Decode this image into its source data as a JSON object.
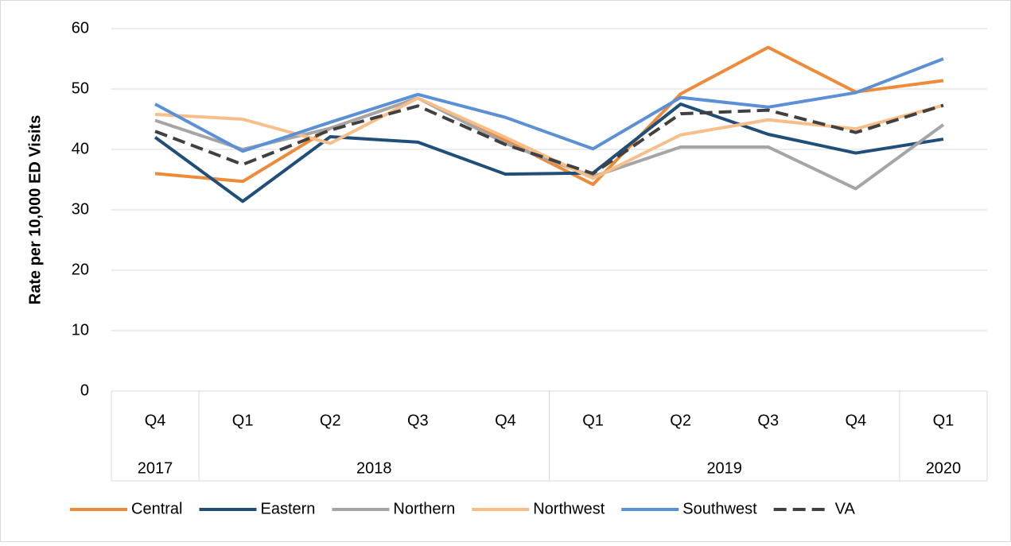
{
  "chart_data": {
    "type": "line",
    "y_label": "Rate per 10,000 ED Visits",
    "categories": [
      "Q4",
      "Q1",
      "Q2",
      "Q3",
      "Q4",
      "Q1",
      "Q2",
      "Q3",
      "Q4",
      "Q1"
    ],
    "years": [
      "2017",
      "2018",
      "2018",
      "2018",
      "2018",
      "2019",
      "2019",
      "2019",
      "2019",
      "2020"
    ],
    "ylim": [
      0,
      60
    ],
    "yticks": [
      0,
      10,
      20,
      30,
      40,
      50,
      60
    ],
    "grid": true,
    "legend": "bottom",
    "series": [
      {
        "name": "Central",
        "color": "#ed8b3a",
        "values": [
          36,
          34.7,
          43.5,
          48.5,
          41.5,
          34.2,
          49.2,
          56.9,
          49.5,
          51.4
        ]
      },
      {
        "name": "Eastern",
        "color": "#1f4e79",
        "values": [
          42,
          31.4,
          42.1,
          41.2,
          35.9,
          36.1,
          47.5,
          42.5,
          39.4,
          41.7
        ]
      },
      {
        "name": "Northern",
        "color": "#a5a5a5",
        "values": [
          44.8,
          40,
          43.5,
          48.5,
          41,
          35.5,
          40.4,
          40.4,
          33.5,
          44.1
        ]
      },
      {
        "name": "Northwest",
        "color": "#f8be8a",
        "values": [
          45.8,
          45,
          41,
          48.5,
          42,
          35.2,
          42.4,
          44.9,
          43.4,
          47.3
        ]
      },
      {
        "name": "Southwest",
        "color": "#5b8fd6",
        "values": [
          47.5,
          39.7,
          44.5,
          49.1,
          45.3,
          40.1,
          48.6,
          47,
          49.4,
          55
        ]
      },
      {
        "name": "VA",
        "color": "#404040",
        "dashed": true,
        "values": [
          43,
          37.5,
          43.2,
          47.2,
          40.8,
          36,
          45.9,
          46.5,
          42.8,
          47.3
        ]
      }
    ]
  }
}
